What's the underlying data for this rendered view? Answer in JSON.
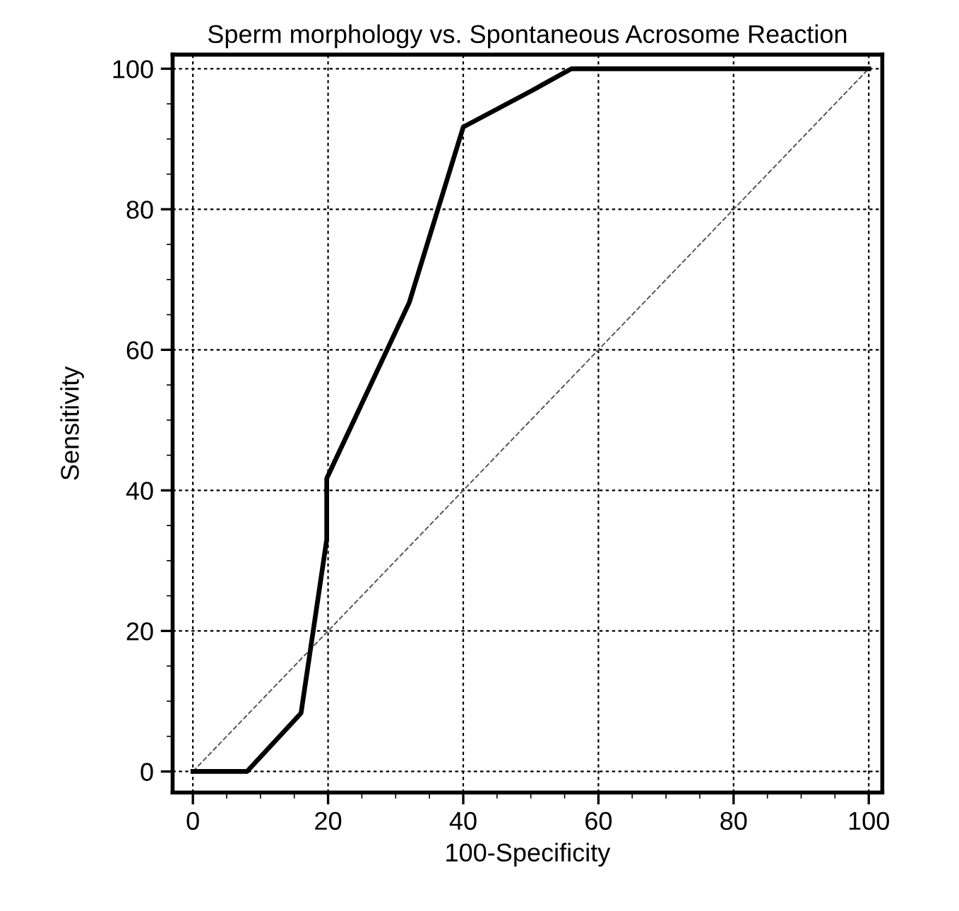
{
  "chart_data": {
    "type": "line",
    "title": "Sperm morphology vs. Spontaneous Acrosome Reaction",
    "xlabel": "100-Specificity",
    "ylabel": "Sensitivity",
    "xlim": [
      -3,
      102
    ],
    "ylim": [
      -3,
      102
    ],
    "xticks": [
      0,
      20,
      40,
      60,
      80,
      100
    ],
    "yticks": [
      0,
      20,
      40,
      60,
      80,
      100
    ],
    "grid": true,
    "marker": "none",
    "series": [
      {
        "color": "#000000",
        "line_style": "solid",
        "x": [
          0,
          8,
          16,
          19.8,
          19.8,
          32,
          40,
          50,
          56,
          100
        ],
        "values": [
          0,
          0,
          8.3,
          33,
          41.7,
          66.7,
          91.7,
          96.8,
          100,
          100
        ]
      },
      {
        "color": "#555555",
        "line_style": "dashed",
        "x": [
          0,
          100
        ],
        "values": [
          0,
          100
        ]
      }
    ]
  }
}
